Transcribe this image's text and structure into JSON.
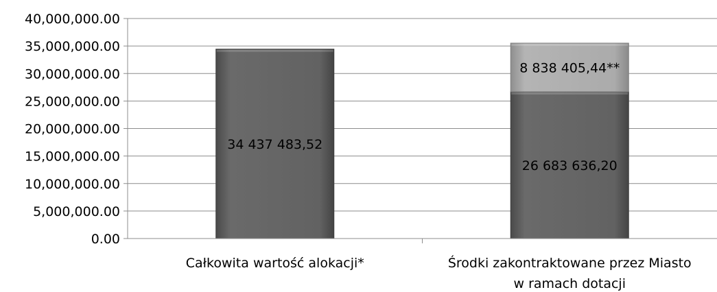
{
  "chart_data": {
    "type": "bar",
    "stacked": true,
    "categories": [
      "Całkowita wartość alokacji*",
      "Środki zakontraktowane przez Miasto w ramach dotacji"
    ],
    "category_label_lines": [
      [
        "Całkowita wartość alokacji*"
      ],
      [
        "Środki zakontraktowane przez Miasto",
        "w ramach dotacji"
      ]
    ],
    "series": [
      {
        "values": [
          34437483.52,
          26683636.2
        ],
        "color": "#5f5f5f",
        "data_labels": [
          "34 437 483,52",
          "26 683 636,20"
        ]
      },
      {
        "values": [
          0,
          8838405.44
        ],
        "color": "#a8a8a8",
        "data_labels": [
          "",
          "8 838 405,44**"
        ]
      }
    ],
    "ylim": [
      0,
      40000000
    ],
    "yticks": [
      0,
      5000000,
      10000000,
      15000000,
      20000000,
      25000000,
      30000000,
      35000000,
      40000000
    ],
    "ytick_labels": [
      "0.00",
      "5,000,000.00",
      "10,000,000.00",
      "15,000,000.00",
      "20,000,000.00",
      "25,000,000.00",
      "30,000,000.00",
      "35,000,000.00",
      "40,000,000.00"
    ],
    "grid": true,
    "legend": "none",
    "title": "",
    "xlabel": "",
    "ylabel": ""
  }
}
